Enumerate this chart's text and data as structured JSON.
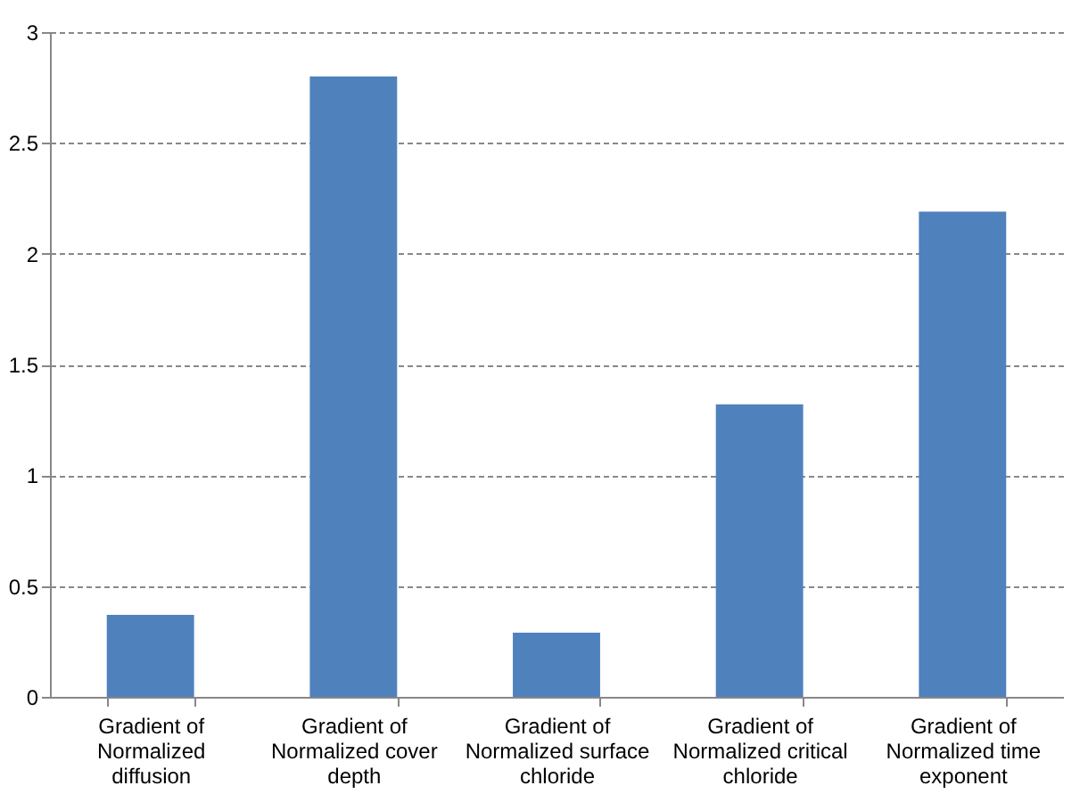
{
  "chart_data": {
    "type": "bar",
    "categories": [
      "Gradient of Normalized diffusion",
      "Gradient of Normalized cover depth",
      "Gradient of Normalized surface chloride",
      "Gradient of Normalized critical chloride",
      "Gradient of Normalized time exponent"
    ],
    "values": [
      0.37,
      2.8,
      0.29,
      1.32,
      2.19
    ],
    "color": "#4f81bd",
    "ylim": [
      0,
      3
    ],
    "yticks": [
      0,
      0.5,
      1,
      1.5,
      2,
      2.5,
      3
    ],
    "grid": "y"
  }
}
